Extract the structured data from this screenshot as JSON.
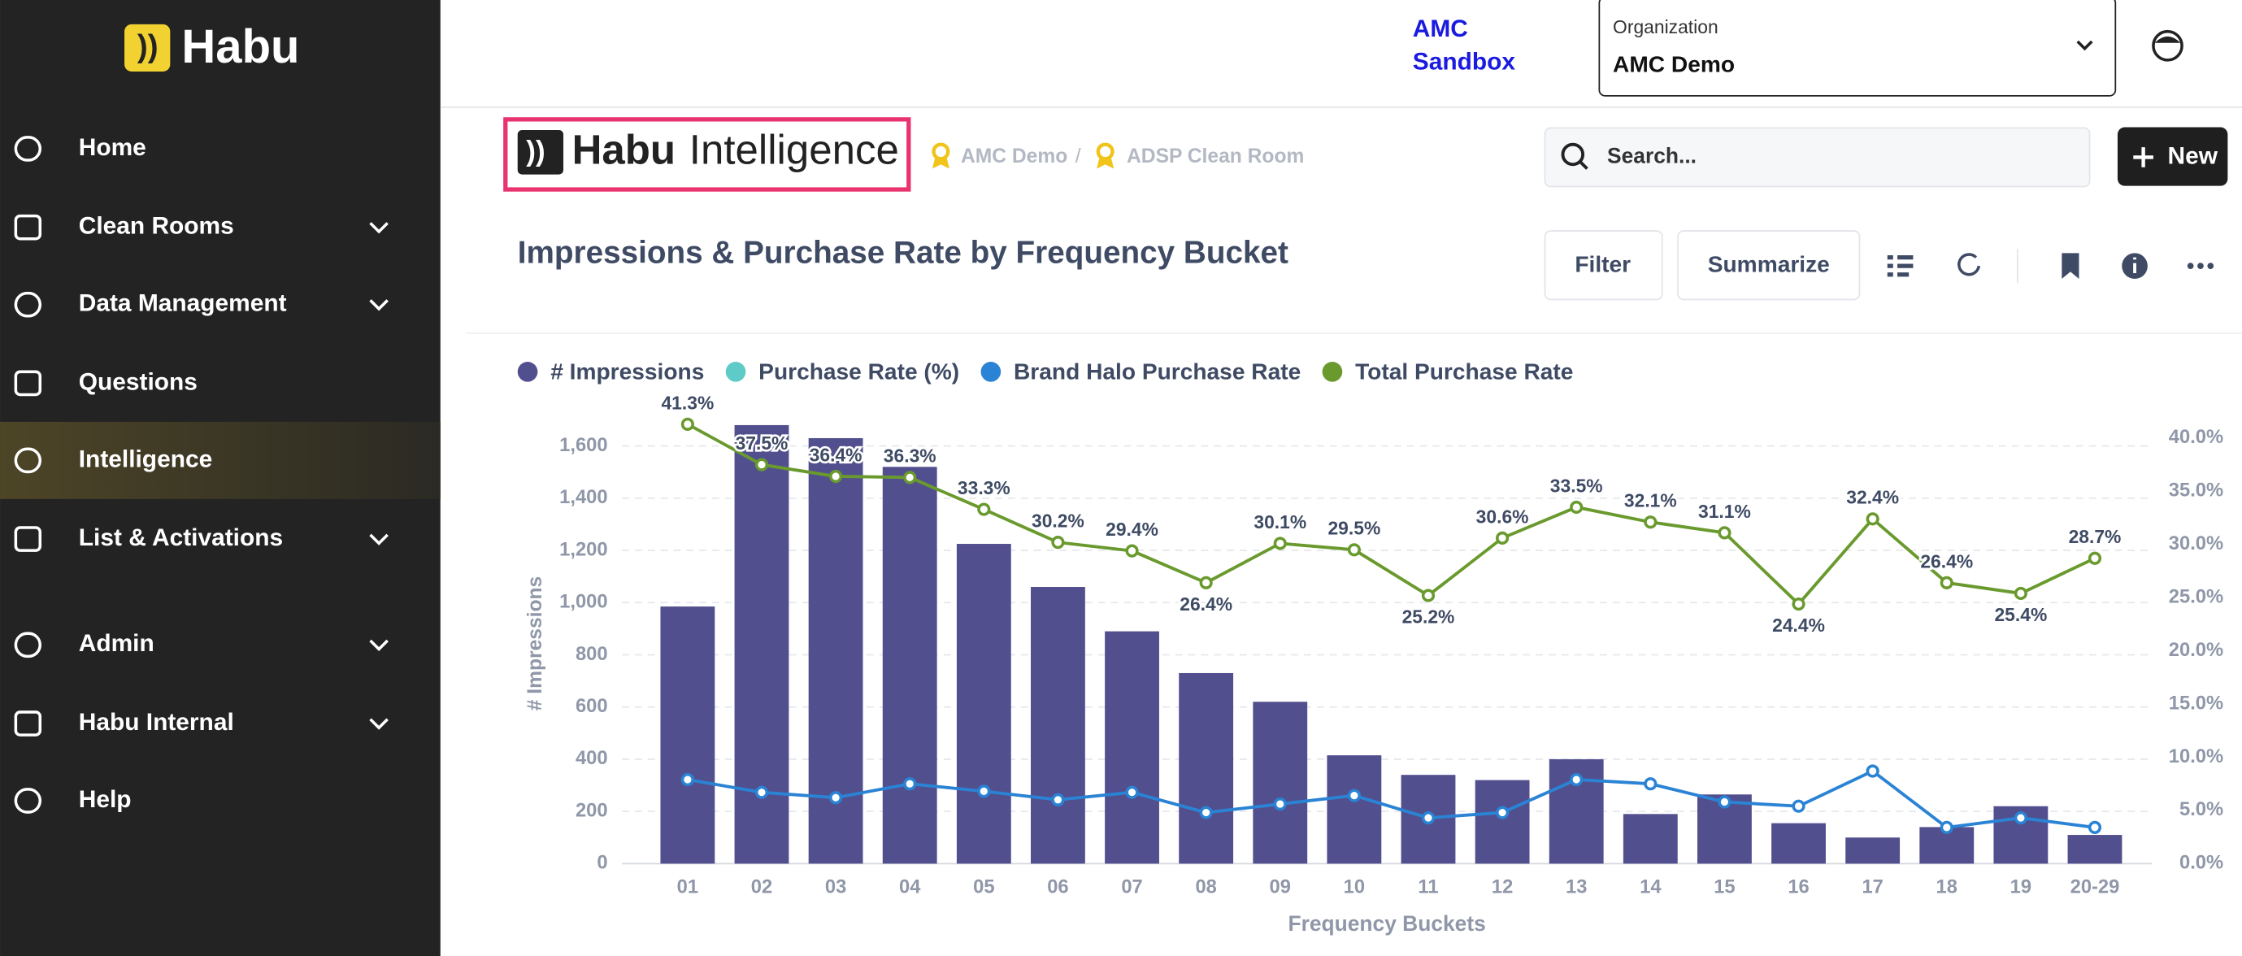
{
  "sidebar": {
    "logo": "Habu",
    "nav": [
      {
        "label": "Home",
        "submenu": false
      },
      {
        "label": "Clean Rooms",
        "submenu": true
      },
      {
        "label": "Data Management",
        "submenu": true
      },
      {
        "label": "Questions",
        "submenu": false
      },
      {
        "label": "Intelligence",
        "submenu": false,
        "active": true
      },
      {
        "label": "List & Activations",
        "submenu": true
      },
      {
        "label": "Admin",
        "submenu": true
      },
      {
        "label": "Habu Internal",
        "submenu": true
      },
      {
        "label": "Help",
        "submenu": false
      }
    ]
  },
  "header": {
    "environment": [
      "AMC",
      "Sandbox"
    ],
    "organization_label": "Organization",
    "organization": "AMC Demo"
  },
  "toolbar": {
    "logo_brand": "Habu",
    "logo_product": "Intelligence",
    "breadcrumbs": [
      "AMC Demo",
      "/",
      "ADSP Clean Room"
    ],
    "search_placeholder": "Search...",
    "new_button": "New"
  },
  "card": {
    "buttons": [
      "Filter",
      "Summarize"
    ]
  },
  "chart_data": {
    "type": "bar-line",
    "title": "Impressions & Purchase Rate by Frequency Bucket",
    "xlabel": "Frequency Buckets",
    "ylabel": "# Impressions",
    "categories": [
      "01",
      "02",
      "03",
      "04",
      "05",
      "06",
      "07",
      "08",
      "09",
      "10",
      "11",
      "12",
      "13",
      "14",
      "15",
      "16",
      "17",
      "18",
      "19",
      "20-29"
    ],
    "series": [
      {
        "name": "# Impressions",
        "type": "bar",
        "color": "#524f8e",
        "values": [
          985,
          1680,
          1630,
          1520,
          1225,
          1060,
          890,
          730,
          620,
          415,
          340,
          320,
          400,
          190,
          265,
          155,
          100,
          140,
          220,
          110
        ]
      },
      {
        "name": "Purchase Rate (%)",
        "type": "line",
        "axis": "y2",
        "color": "#5ecbc8",
        "values": [
          null,
          null,
          null,
          null,
          null,
          null,
          null,
          null,
          null,
          null,
          null,
          null,
          null,
          null,
          null,
          null,
          null,
          null,
          null,
          null
        ]
      },
      {
        "name": "Brand Halo Purchase Rate",
        "type": "line",
        "axis": "y2",
        "color": "#2a83d4",
        "values": [
          7.9,
          6.7,
          6.2,
          7.5,
          6.8,
          6.0,
          6.7,
          4.8,
          5.6,
          6.4,
          4.3,
          4.8,
          7.9,
          7.5,
          5.8,
          5.4,
          8.7,
          3.4,
          4.3,
          3.4
        ]
      },
      {
        "name": "Total Purchase Rate",
        "type": "line",
        "axis": "y2",
        "color": "#6a9a2e",
        "values": [
          41.3,
          37.5,
          36.4,
          36.3,
          33.3,
          30.2,
          29.4,
          26.4,
          30.1,
          29.5,
          25.2,
          30.6,
          33.5,
          32.1,
          31.1,
          24.4,
          32.4,
          26.4,
          25.4,
          28.7
        ],
        "value_labels": [
          "41.3%",
          "37.5%",
          "36.4%",
          "36.3%",
          "33.3%",
          "30.2%",
          "29.4%",
          "26.4%",
          "30.1%",
          "29.5%",
          "25.2%",
          "30.6%",
          "33.5%",
          "32.1%",
          "31.1%",
          "24.4%",
          "32.4%",
          "26.4%",
          "25.4%",
          "28.7%"
        ]
      }
    ],
    "ylim": [
      0,
      1720
    ],
    "yticks": [
      0,
      200,
      400,
      600,
      800,
      {
        "value": 1000,
        "label": "1,000"
      },
      {
        "value": 1200,
        "label": "1,200"
      },
      {
        "value": 1400,
        "label": "1,400"
      },
      {
        "value": 1600,
        "label": "1,600"
      }
    ],
    "y2lim": [
      0,
      42.2
    ],
    "y2ticks": [
      {
        "value": 0,
        "label": "0.0%"
      },
      {
        "value": 5,
        "label": "5.0%"
      },
      {
        "value": 10,
        "label": "10.0%"
      },
      {
        "value": 15,
        "label": "15.0%"
      },
      {
        "value": 20,
        "label": "20.0%"
      },
      {
        "value": 25,
        "label": "25.0%"
      },
      {
        "value": 30,
        "label": "30.0%"
      },
      {
        "value": 35,
        "label": "35.0%"
      },
      {
        "value": 40,
        "label": "40.0%"
      }
    ],
    "grid": true,
    "legend": "top-left"
  }
}
